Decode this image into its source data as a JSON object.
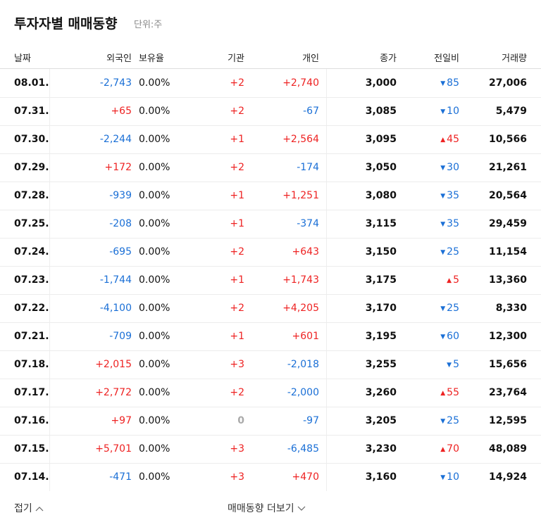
{
  "header": {
    "title": "투자자별 매매동향",
    "unit": "단위:주"
  },
  "table": {
    "columns": [
      "날짜",
      "외국인",
      "보유율",
      "기관",
      "개인",
      "종가",
      "전일비",
      "거래량"
    ],
    "rows": [
      [
        "08.01.",
        "-2,743",
        "0.00%",
        "+2",
        "+2,740",
        "3,000",
        "▼85",
        "27,006"
      ],
      [
        "07.31.",
        "+65",
        "0.00%",
        "+2",
        "-67",
        "3,085",
        "▼10",
        "5,479"
      ],
      [
        "07.30.",
        "-2,244",
        "0.00%",
        "+1",
        "+2,564",
        "3,095",
        "▲45",
        "10,566"
      ],
      [
        "07.29.",
        "+172",
        "0.00%",
        "+2",
        "-174",
        "3,050",
        "▼30",
        "21,261"
      ],
      [
        "07.28.",
        "-939",
        "0.00%",
        "+1",
        "+1,251",
        "3,080",
        "▼35",
        "20,564"
      ],
      [
        "07.25.",
        "-208",
        "0.00%",
        "+1",
        "-374",
        "3,115",
        "▼35",
        "29,459"
      ],
      [
        "07.24.",
        "-695",
        "0.00%",
        "+2",
        "+643",
        "3,150",
        "▼25",
        "11,154"
      ],
      [
        "07.23.",
        "-1,744",
        "0.00%",
        "+1",
        "+1,743",
        "3,175",
        "▲5",
        "13,360"
      ],
      [
        "07.22.",
        "-4,100",
        "0.00%",
        "+2",
        "+4,205",
        "3,170",
        "▼25",
        "8,330"
      ],
      [
        "07.21.",
        "-709",
        "0.00%",
        "+1",
        "+601",
        "3,195",
        "▼60",
        "12,300"
      ],
      [
        "07.18.",
        "+2,015",
        "0.00%",
        "+3",
        "-2,018",
        "3,255",
        "▼5",
        "15,656"
      ],
      [
        "07.17.",
        "+2,772",
        "0.00%",
        "+2",
        "-2,000",
        "3,260",
        "▲55",
        "23,764"
      ],
      [
        "07.16.",
        "+97",
        "0.00%",
        "0",
        "-97",
        "3,205",
        "▼25",
        "12,595"
      ],
      [
        "07.15.",
        "+5,701",
        "0.00%",
        "+3",
        "-6,485",
        "3,230",
        "▲70",
        "48,089"
      ],
      [
        "07.14.",
        "-471",
        "0.00%",
        "+3",
        "+470",
        "3,160",
        "▼10",
        "14,924"
      ]
    ]
  },
  "footer": {
    "collapse": "접기",
    "more": "매매동향 더보기"
  }
}
